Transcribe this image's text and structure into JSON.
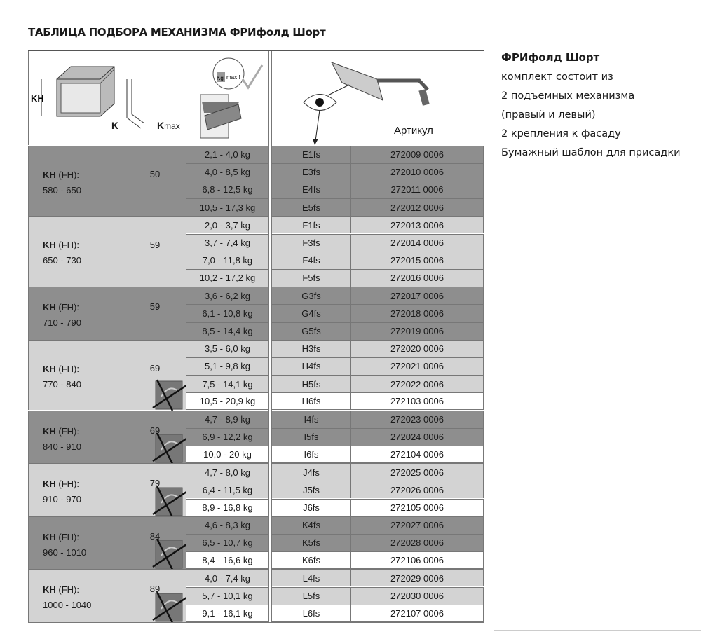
{
  "title": "ТАБЛИЦА ПОДБОРА МЕХАНИЗМА ФРИфолд Шорт",
  "header": {
    "kh": "KH",
    "k": "K",
    "kmax": "K",
    "kmax_sub": "max",
    "kg_label": "Kg",
    "max_label": "max !",
    "article_label": "Артикул"
  },
  "colors": {
    "dark": "#8e8e8e",
    "light": "#d3d3d3",
    "white": "#ffffff"
  },
  "kh_prefix": "KH",
  "kh_suffix": " (FH):",
  "groups": [
    {
      "range": "580 - 650",
      "k": "50",
      "dark": true,
      "no_icon": false,
      "rows": [
        [
          "2,1 - 4,0 kg",
          "E1fs",
          "272009 0006",
          false
        ],
        [
          "4,0 - 8,5 kg",
          "E3fs",
          "272010 0006",
          false
        ],
        [
          "6,8 - 12,5 kg",
          "E4fs",
          "272011 0006",
          false
        ],
        [
          "10,5 - 17,3 kg",
          "E5fs",
          "272012 0006",
          false
        ]
      ]
    },
    {
      "range": "650 - 730",
      "k": "59",
      "dark": false,
      "no_icon": false,
      "rows": [
        [
          "2,0 - 3,7 kg",
          "F1fs",
          "272013 0006",
          false
        ],
        [
          "3,7 - 7,4 kg",
          "F3fs",
          "272014 0006",
          false
        ],
        [
          "7,0 - 11,8 kg",
          "F4fs",
          "272015 0006",
          false
        ],
        [
          "10,2 - 17,2 kg",
          "F5fs",
          "272016 0006",
          false
        ]
      ]
    },
    {
      "range": "710 - 790",
      "k": "59",
      "dark": true,
      "no_icon": false,
      "rows": [
        [
          "3,6 - 6,2 kg",
          "G3fs",
          "272017 0006",
          false
        ],
        [
          "6,1 - 10,8 kg",
          "G4fs",
          "272018 0006",
          false
        ],
        [
          "8,5 - 14,4 kg",
          "G5fs",
          "272019 0006",
          false
        ]
      ]
    },
    {
      "range": "770 - 840",
      "k": "69",
      "dark": false,
      "no_icon": true,
      "rows": [
        [
          "3,5 - 6,0 kg",
          "H3fs",
          "272020 0006",
          false
        ],
        [
          "5,1 - 9,8 kg",
          "H4fs",
          "272021 0006",
          false
        ],
        [
          "7,5 - 14,1 kg",
          "H5fs",
          "272022 0006",
          false
        ],
        [
          "10,5 - 20,9 kg",
          "H6fs",
          "272103 0006",
          true
        ]
      ]
    },
    {
      "range": "840 - 910",
      "k": "69",
      "dark": true,
      "no_icon": true,
      "rows": [
        [
          "4,7 - 8,9 kg",
          "I4fs",
          "272023 0006",
          false
        ],
        [
          "6,9 - 12,2 kg",
          "I5fs",
          "272024 0006",
          false
        ],
        [
          "10,0 - 20 kg",
          "I6fs",
          "272104 0006",
          true
        ]
      ]
    },
    {
      "range": "910 - 970",
      "k": "79",
      "dark": false,
      "no_icon": true,
      "rows": [
        [
          "4,7 - 8,0 kg",
          "J4fs",
          "272025 0006",
          false
        ],
        [
          "6,4 - 11,5 kg",
          "J5fs",
          "272026 0006",
          false
        ],
        [
          "8,9 - 16,8 kg",
          "J6fs",
          "272105 0006",
          true
        ]
      ]
    },
    {
      "range": "960 - 1010",
      "k": "84",
      "dark": true,
      "no_icon": true,
      "rows": [
        [
          "4,6 - 8,3 kg",
          "K4fs",
          "272027 0006",
          false
        ],
        [
          "6,5 - 10,7 kg",
          "K5fs",
          "272028 0006",
          false
        ],
        [
          "8,4 - 16,6 kg",
          "K6fs",
          "272106 0006",
          true
        ]
      ]
    },
    {
      "range": "1000 - 1040",
      "k": "89",
      "dark": false,
      "no_icon": true,
      "rows": [
        [
          "4,0 - 7,4 kg",
          "L4fs",
          "272029 0006",
          false
        ],
        [
          "5,7 - 10,1 kg",
          "L5fs",
          "272030 0006",
          false
        ],
        [
          "9,1 - 16,1 kg",
          "L6fs",
          "272107 0006",
          true
        ]
      ]
    }
  ],
  "side": {
    "title": "ФРИфолд Шорт",
    "lines": [
      "комплект состоит из",
      "2 подъемных механизма",
      "(правый и левый)",
      "2 крепления к фасаду",
      "Бумажный шаблон для присадки"
    ]
  }
}
